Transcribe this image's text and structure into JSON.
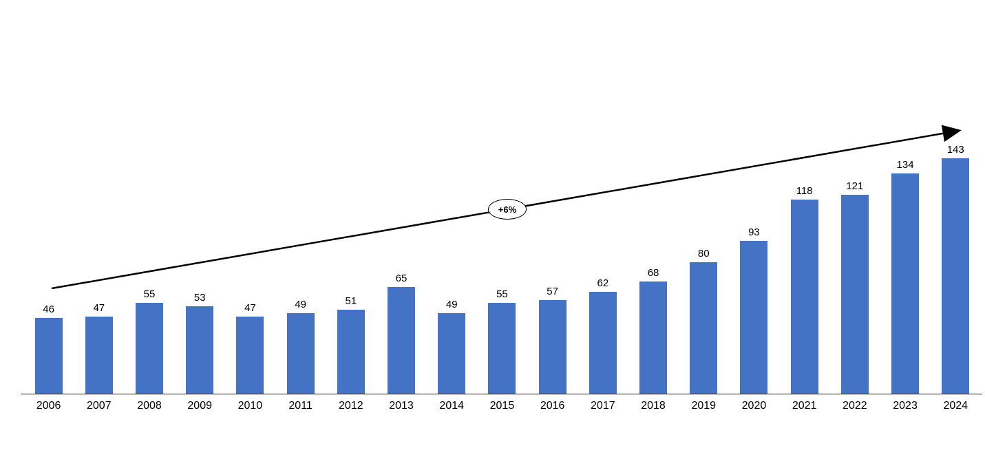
{
  "chart_data": {
    "type": "bar",
    "title": "",
    "xlabel": "",
    "ylabel": "",
    "categories": [
      "2006",
      "2007",
      "2008",
      "2009",
      "2010",
      "2011",
      "2012",
      "2013",
      "2014",
      "2015",
      "2016",
      "2017",
      "2018",
      "2019",
      "2020",
      "2021",
      "2022",
      "2023",
      "2024"
    ],
    "values": [
      46,
      47,
      55,
      53,
      47,
      49,
      51,
      65,
      49,
      55,
      57,
      62,
      68,
      80,
      93,
      118,
      121,
      134,
      143
    ],
    "bar_color": "#4472C4",
    "ylim": [
      0,
      150
    ],
    "grid": false,
    "legend": null,
    "annotation": {
      "label": "+6%",
      "shape": "ellipse",
      "line_color": "#000000"
    }
  }
}
